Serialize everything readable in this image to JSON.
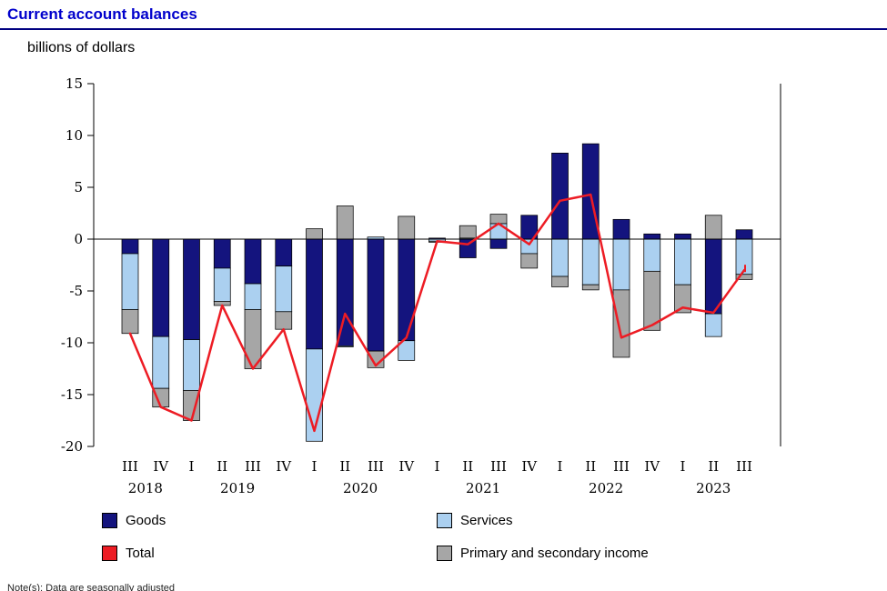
{
  "page": {
    "title": "Current account balances",
    "units_label": "billions of dollars",
    "note": "Note(s): Data are seasonally adjusted"
  },
  "colors": {
    "title": "#0000cc",
    "rule": "#000080",
    "goods": "#14147e",
    "services": "#abd0f0",
    "primary": "#a6a6a6",
    "total": "#ed1c24",
    "axis": "#000000"
  },
  "legend": [
    {
      "label": "Goods",
      "color_key": "goods"
    },
    {
      "label": "Services",
      "color_key": "services"
    },
    {
      "label": "Total",
      "color_key": "total"
    },
    {
      "label": "Primary and secondary income",
      "color_key": "primary"
    }
  ],
  "chart_data": {
    "type": "bar",
    "subtype": "stacked-bars-with-total-line",
    "title": "Current account balances",
    "ylabel": "billions of dollars",
    "ylim": [
      -20,
      15
    ],
    "yticks": [
      15,
      10,
      5,
      0,
      -5,
      -10,
      -15,
      -20
    ],
    "grid": false,
    "legend_position": "bottom",
    "categories": [
      "2018 Q3",
      "2018 Q4",
      "2019 Q1",
      "2019 Q2",
      "2019 Q3",
      "2019 Q4",
      "2020 Q1",
      "2020 Q2",
      "2020 Q3",
      "2020 Q4",
      "2021 Q1",
      "2021 Q2",
      "2021 Q3",
      "2021 Q4",
      "2022 Q1",
      "2022 Q2",
      "2022 Q3",
      "2022 Q4",
      "2023 Q1",
      "2023 Q2",
      "2023 Q3"
    ],
    "quarter_labels": [
      "III",
      "IV",
      "I",
      "II",
      "III",
      "IV",
      "I",
      "II",
      "III",
      "IV",
      "I",
      "II",
      "III",
      "IV",
      "I",
      "II",
      "III",
      "IV",
      "I",
      "II",
      "III"
    ],
    "year_groups": [
      {
        "year": "2018",
        "start": 0,
        "count": 2
      },
      {
        "year": "2019",
        "start": 2,
        "count": 4
      },
      {
        "year": "2020",
        "start": 6,
        "count": 4
      },
      {
        "year": "2021",
        "start": 10,
        "count": 4
      },
      {
        "year": "2022",
        "start": 14,
        "count": 4
      },
      {
        "year": "2023",
        "start": 18,
        "count": 3
      }
    ],
    "series": [
      {
        "name": "Goods",
        "key": "goods",
        "values": [
          -1.4,
          -9.4,
          -9.7,
          -2.8,
          -4.3,
          -2.6,
          -10.6,
          -10.3,
          -10.8,
          -9.8,
          0.1,
          -1.8,
          -0.9,
          2.3,
          8.3,
          9.2,
          1.9,
          0.5,
          0.5,
          -7.2,
          0.9
        ]
      },
      {
        "name": "Services",
        "key": "services",
        "values": [
          -5.4,
          -5.0,
          -4.9,
          -3.2,
          -2.5,
          -4.4,
          -8.9,
          -0.1,
          0.2,
          -1.9,
          -0.2,
          0.1,
          1.5,
          -1.4,
          -3.6,
          -4.4,
          -4.9,
          -3.1,
          -4.4,
          -2.2,
          -3.4
        ]
      },
      {
        "name": "Primary and secondary income",
        "key": "primary",
        "values": [
          -2.3,
          -1.8,
          -2.9,
          -0.4,
          -5.7,
          -1.7,
          1.0,
          3.2,
          -1.6,
          2.2,
          -0.1,
          1.2,
          0.9,
          -1.4,
          -1.0,
          -0.5,
          -6.5,
          -5.7,
          -2.7,
          2.3,
          -0.5
        ]
      }
    ],
    "line": {
      "name": "Total",
      "key": "total",
      "values": [
        -9.1,
        -16.2,
        -17.5,
        -6.4,
        -12.5,
        -8.7,
        -18.5,
        -7.2,
        -12.2,
        -9.5,
        -0.2,
        -0.5,
        1.5,
        -0.5,
        3.7,
        4.3,
        -9.5,
        -8.3,
        -6.6,
        -7.1,
        -3.0
      ]
    }
  }
}
